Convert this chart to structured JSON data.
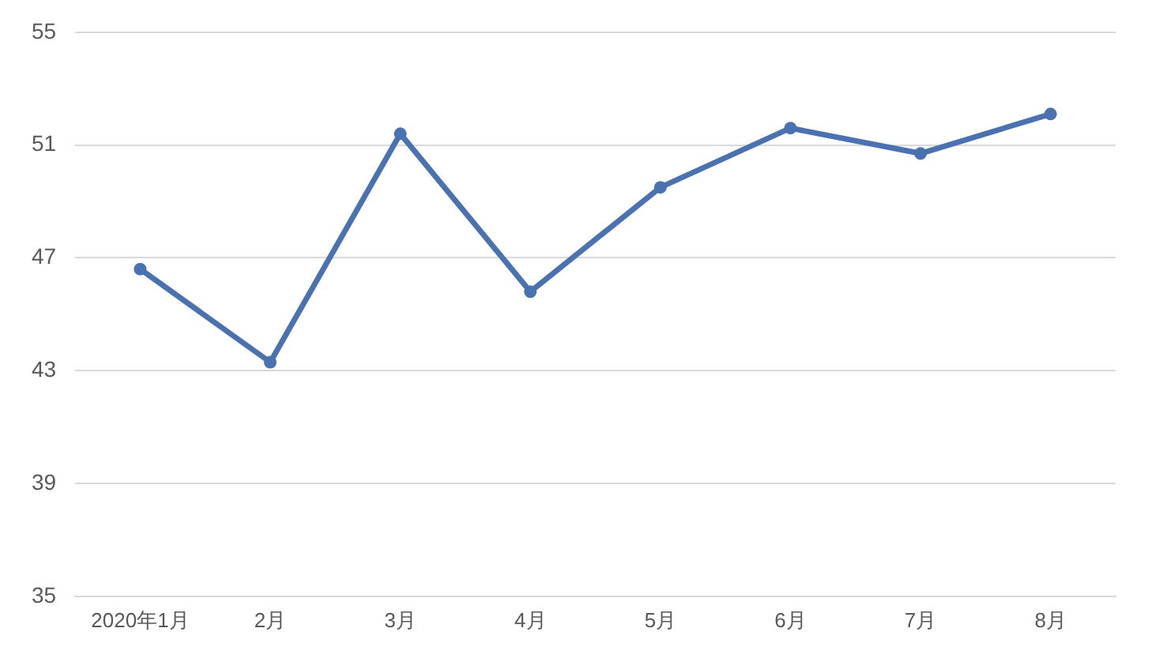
{
  "chart_data": {
    "type": "line",
    "categories": [
      "2020年1月",
      "2月",
      "3月",
      "4月",
      "5月",
      "6月",
      "7月",
      "8月"
    ],
    "series": [
      {
        "color": "#4a72b0",
        "values": [
          46.6,
          43.3,
          51.4,
          45.8,
          49.5,
          51.6,
          50.7,
          52.1
        ]
      }
    ],
    "ylim": [
      35,
      55
    ],
    "yticks": [
      35,
      39,
      43,
      47,
      51,
      55
    ],
    "grid": "y",
    "legend": false,
    "marker": "circle",
    "line_style": "solid"
  }
}
